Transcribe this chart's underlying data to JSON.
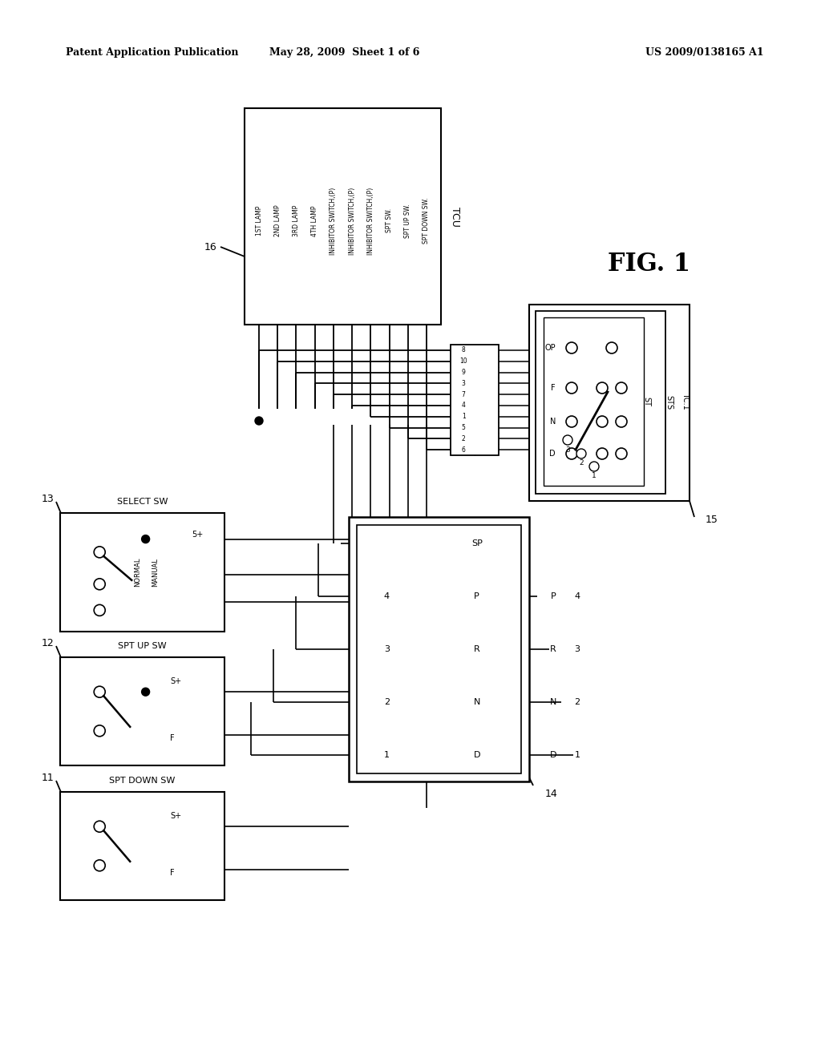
{
  "header_left": "Patent Application Publication",
  "header_center": "May 28, 2009  Sheet 1 of 6",
  "header_right": "US 2009/0138165 A1",
  "background": "#ffffff",
  "lc": "#000000",
  "tcu_labels": [
    "1ST LAMP",
    "2ND LAMP",
    "3RD LAMP",
    "4TH LAMP",
    "INHIBITOR SWITCH,(P)",
    "INHIBITOR SWITCH,(P)",
    "INHIBITOR SWITCH,(P)",
    "SPT SW.",
    "SPT UP SW.",
    "SPT DOWN SW."
  ],
  "tcu_label": "TCU",
  "tcu_ref": "16",
  "fig_label": "FIG. 1",
  "ref_15": "15",
  "ref_14": "14",
  "ref_13": "13",
  "ref_12": "12",
  "ref_11": "11",
  "contact_labels_top": [
    "OP",
    "F",
    "N",
    "D"
  ],
  "contact_labels_bot": [
    "3",
    "2",
    "1"
  ],
  "nested_labels": [
    "IC.1",
    "STS",
    "ST"
  ],
  "connector_nums_left": [
    "8",
    "10",
    "9",
    "3",
    "7",
    "4",
    "1",
    "5",
    "2",
    "6"
  ],
  "connector_nums_right": [
    "",
    "",
    "",
    "",
    "",
    "",
    "",
    "",
    "",
    ""
  ],
  "lower_right_labels": [
    "SP",
    "P",
    "R",
    "N",
    "D"
  ],
  "lower_left_nums": [
    "",
    "4",
    "3",
    "2",
    "1"
  ],
  "outer_right_labels": [
    "P",
    "R",
    "N",
    "D"
  ],
  "outer_right_nums": [
    "4",
    "3",
    "2",
    "1"
  ]
}
